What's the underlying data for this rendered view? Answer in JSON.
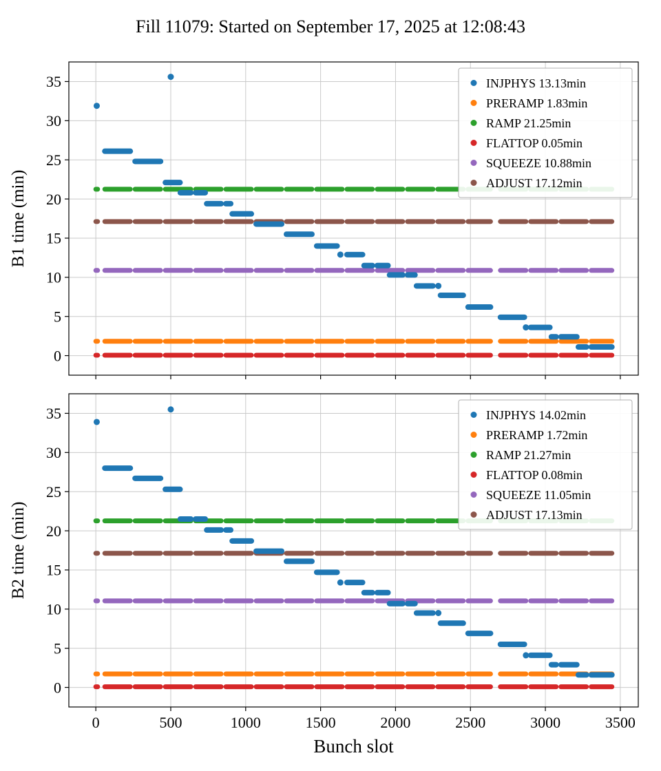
{
  "title": "Fill 11079: Started on September 17, 2025 at 12:08:43",
  "bunch_segments": [
    [
      0,
      12
    ],
    [
      60,
      230
    ],
    [
      262,
      432
    ],
    [
      464,
      634
    ],
    [
      666,
      836
    ],
    [
      868,
      1038
    ],
    [
      1070,
      1240
    ],
    [
      1272,
      1442
    ],
    [
      1474,
      1644
    ],
    [
      1676,
      1846
    ],
    [
      1878,
      2048
    ],
    [
      2080,
      2250
    ],
    [
      2282,
      2452
    ],
    [
      2484,
      2634
    ],
    [
      2700,
      2870
    ],
    [
      2902,
      3072
    ],
    [
      3104,
      3274
    ],
    [
      3306,
      3444
    ]
  ],
  "chart_data": [
    {
      "type": "scatter",
      "ylabel": "B1 time (min)",
      "xlabel": "",
      "xlim": [
        -180,
        3620
      ],
      "ylim": [
        -2.5,
        37.5
      ],
      "xticks": [
        0,
        500,
        1000,
        1500,
        2000,
        2500,
        3000,
        3500
      ],
      "yticks": [
        0,
        5,
        10,
        15,
        20,
        25,
        30,
        35
      ],
      "grid": true,
      "legend_position": "upper right",
      "legend": [
        {
          "name": "INJPHYS",
          "label": "INJPHYS 13.13min",
          "color": "#1f77b4"
        },
        {
          "name": "PRERAMP",
          "label": "PRERAMP 1.83min",
          "color": "#ff7f0e"
        },
        {
          "name": "RAMP",
          "label": "RAMP 21.25min",
          "color": "#2ca02c"
        },
        {
          "name": "FLATTOP",
          "label": "FLATTOP 0.05min",
          "color": "#d62728"
        },
        {
          "name": "SQUEEZE",
          "label": "SQUEEZE 10.88min",
          "color": "#9467bd"
        },
        {
          "name": "ADJUST",
          "label": "ADJUST 17.12min",
          "color": "#8c564b"
        }
      ],
      "constants": [
        {
          "name": "PRERAMP",
          "value": 1.83,
          "color": "#ff7f0e"
        },
        {
          "name": "RAMP",
          "value": 21.25,
          "color": "#2ca02c"
        },
        {
          "name": "FLATTOP",
          "value": 0.05,
          "color": "#d62728"
        },
        {
          "name": "SQUEEZE",
          "value": 10.88,
          "color": "#9467bd"
        },
        {
          "name": "ADJUST",
          "value": 17.12,
          "color": "#8c564b"
        }
      ],
      "injphys": {
        "name": "INJPHYS",
        "color": "#1f77b4",
        "steps": [
          [
            0,
            12,
            31.9
          ],
          [
            60,
            230,
            26.1
          ],
          [
            262,
            432,
            24.8
          ],
          [
            464,
            562,
            22.1
          ],
          [
            564,
            730,
            20.8
          ],
          [
            740,
            900,
            19.4
          ],
          [
            910,
            1060,
            18.1
          ],
          [
            1070,
            1250,
            16.8
          ],
          [
            1272,
            1442,
            15.5
          ],
          [
            1452,
            1610,
            14.0
          ],
          [
            1620,
            1780,
            12.9
          ],
          [
            1790,
            1950,
            11.5
          ],
          [
            1960,
            2130,
            10.3
          ],
          [
            2140,
            2290,
            8.9
          ],
          [
            2300,
            2452,
            7.7
          ],
          [
            2460,
            2634,
            6.2
          ],
          [
            2700,
            2860,
            4.9
          ],
          [
            2870,
            3030,
            3.6
          ],
          [
            3040,
            3210,
            2.4
          ],
          [
            3220,
            3444,
            1.1
          ]
        ],
        "outliers": [
          [
            500,
            35.6
          ]
        ]
      }
    },
    {
      "type": "scatter",
      "ylabel": "B2 time (min)",
      "xlabel": "Bunch slot",
      "xlim": [
        -180,
        3620
      ],
      "ylim": [
        -2.5,
        37.5
      ],
      "xticks": [
        0,
        500,
        1000,
        1500,
        2000,
        2500,
        3000,
        3500
      ],
      "yticks": [
        0,
        5,
        10,
        15,
        20,
        25,
        30,
        35
      ],
      "grid": true,
      "legend_position": "upper right",
      "legend": [
        {
          "name": "INJPHYS",
          "label": "INJPHYS 14.02min",
          "color": "#1f77b4"
        },
        {
          "name": "PRERAMP",
          "label": "PRERAMP 1.72min",
          "color": "#ff7f0e"
        },
        {
          "name": "RAMP",
          "label": "RAMP 21.27min",
          "color": "#2ca02c"
        },
        {
          "name": "FLATTOP",
          "label": "FLATTOP 0.08min",
          "color": "#d62728"
        },
        {
          "name": "SQUEEZE",
          "label": "SQUEEZE 11.05min",
          "color": "#9467bd"
        },
        {
          "name": "ADJUST",
          "label": "ADJUST 17.13min",
          "color": "#8c564b"
        }
      ],
      "constants": [
        {
          "name": "PRERAMP",
          "value": 1.72,
          "color": "#ff7f0e"
        },
        {
          "name": "RAMP",
          "value": 21.27,
          "color": "#2ca02c"
        },
        {
          "name": "FLATTOP",
          "value": 0.08,
          "color": "#d62728"
        },
        {
          "name": "SQUEEZE",
          "value": 11.05,
          "color": "#9467bd"
        },
        {
          "name": "ADJUST",
          "value": 17.13,
          "color": "#8c564b"
        }
      ],
      "injphys": {
        "name": "INJPHYS",
        "color": "#1f77b4",
        "steps": [
          [
            0,
            12,
            33.9
          ],
          [
            60,
            230,
            28.0
          ],
          [
            262,
            432,
            26.7
          ],
          [
            464,
            562,
            25.3
          ],
          [
            564,
            730,
            21.5
          ],
          [
            740,
            900,
            20.1
          ],
          [
            910,
            1060,
            18.7
          ],
          [
            1070,
            1250,
            17.4
          ],
          [
            1272,
            1442,
            16.1
          ],
          [
            1452,
            1610,
            14.7
          ],
          [
            1620,
            1780,
            13.4
          ],
          [
            1790,
            1950,
            12.1
          ],
          [
            1960,
            2130,
            10.7
          ],
          [
            2140,
            2290,
            9.5
          ],
          [
            2300,
            2452,
            8.2
          ],
          [
            2460,
            2634,
            6.9
          ],
          [
            2700,
            2860,
            5.5
          ],
          [
            2870,
            3030,
            4.1
          ],
          [
            3040,
            3210,
            2.9
          ],
          [
            3220,
            3444,
            1.6
          ]
        ],
        "outliers": [
          [
            500,
            35.5
          ]
        ]
      }
    }
  ]
}
